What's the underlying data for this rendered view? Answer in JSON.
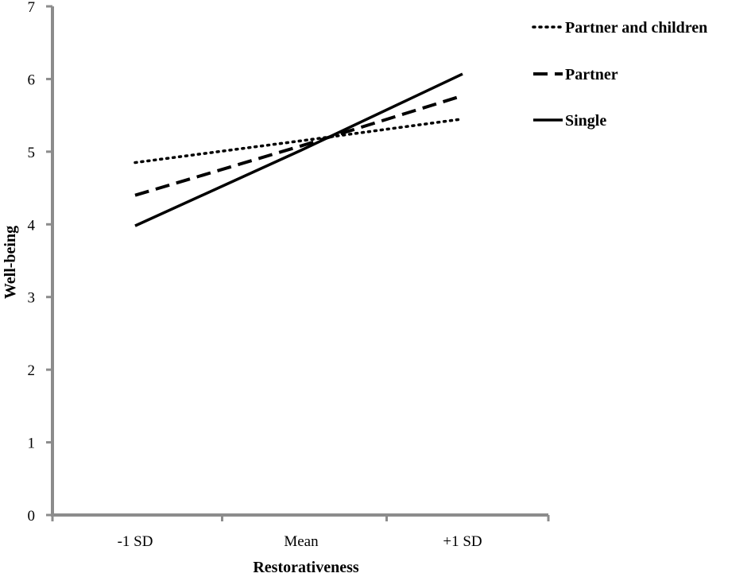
{
  "chart_data": {
    "type": "line",
    "categories": [
      "-1 SD",
      "Mean",
      "+1 SD"
    ],
    "xlabel": "Restorativeness",
    "ylabel": "Well-being",
    "ylim": [
      0,
      7
    ],
    "yticks": [
      "0",
      "1",
      "2",
      "3",
      "4",
      "5",
      "6",
      "7"
    ],
    "grid": false,
    "legend_position": "top-right",
    "series": [
      {
        "name": "Partner and children",
        "style": "dotted",
        "color": "#000000",
        "values": [
          4.85,
          5.15,
          5.45
        ]
      },
      {
        "name": "Partner",
        "style": "dashed",
        "color": "#000000",
        "values": [
          4.4,
          5.08,
          5.77
        ]
      },
      {
        "name": "Single",
        "style": "solid",
        "color": "#000000",
        "values": [
          3.98,
          5.02,
          6.07
        ]
      }
    ]
  }
}
